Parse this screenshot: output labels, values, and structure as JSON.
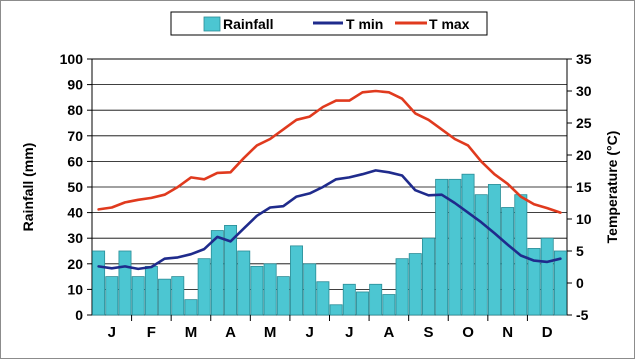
{
  "chart_data": {
    "type": "bar+line",
    "title": "",
    "x_tick_labels": [
      "J",
      "F",
      "M",
      "A",
      "M",
      "J",
      "J",
      "A",
      "S",
      "O",
      "N",
      "D"
    ],
    "left_axis": {
      "label": "Rainfall (mm)",
      "min": 0,
      "max": 100,
      "step": 10,
      "ticks": [
        "0",
        "10",
        "20",
        "30",
        "40",
        "50",
        "60",
        "70",
        "80",
        "90",
        "100"
      ]
    },
    "right_axis": {
      "label": "Temperature (°C)",
      "min": -5,
      "max": 35,
      "step": 5,
      "ticks": [
        "-5",
        "0",
        "5",
        "10",
        "15",
        "20",
        "25",
        "30",
        "35"
      ]
    },
    "grid": true,
    "legend": {
      "position": "top-center",
      "entries": [
        "Rainfall",
        "T min",
        "T max"
      ]
    },
    "series": [
      {
        "name": "Rainfall",
        "type": "bar",
        "axis": "left",
        "color": "#4cc6d2",
        "values": [
          25,
          15,
          25,
          15,
          19,
          14,
          15,
          6,
          22,
          33,
          35,
          25,
          19,
          20,
          15,
          27,
          20,
          13,
          4,
          12,
          9,
          12,
          8,
          22,
          24,
          30,
          53,
          53,
          55,
          47,
          51,
          42,
          47,
          26,
          30,
          25
        ]
      },
      {
        "name": "T min",
        "type": "line",
        "axis": "right",
        "color": "#1f2b8c",
        "values": [
          2.6,
          2.3,
          2.6,
          2.2,
          2.5,
          3.8,
          4.0,
          4.5,
          5.3,
          7.2,
          6.5,
          8.5,
          10.5,
          11.8,
          12.0,
          13.5,
          14.0,
          15.0,
          16.2,
          16.5,
          17.0,
          17.6,
          17.3,
          16.8,
          14.5,
          13.7,
          13.8,
          12.5,
          11.0,
          9.5,
          7.8,
          6.0,
          4.3,
          3.5,
          3.3,
          3.8
        ]
      },
      {
        "name": "T max",
        "type": "line",
        "axis": "right",
        "color": "#e03a1e",
        "values": [
          11.5,
          11.8,
          12.6,
          13.0,
          13.3,
          13.8,
          15.0,
          16.5,
          16.2,
          17.2,
          17.3,
          19.5,
          21.5,
          22.5,
          24.0,
          25.5,
          26.0,
          27.5,
          28.5,
          28.5,
          29.8,
          30.0,
          29.8,
          28.8,
          26.5,
          25.5,
          24.0,
          22.5,
          21.5,
          19.0,
          17.0,
          15.5,
          13.5,
          12.3,
          11.7,
          11.0
        ]
      }
    ]
  }
}
